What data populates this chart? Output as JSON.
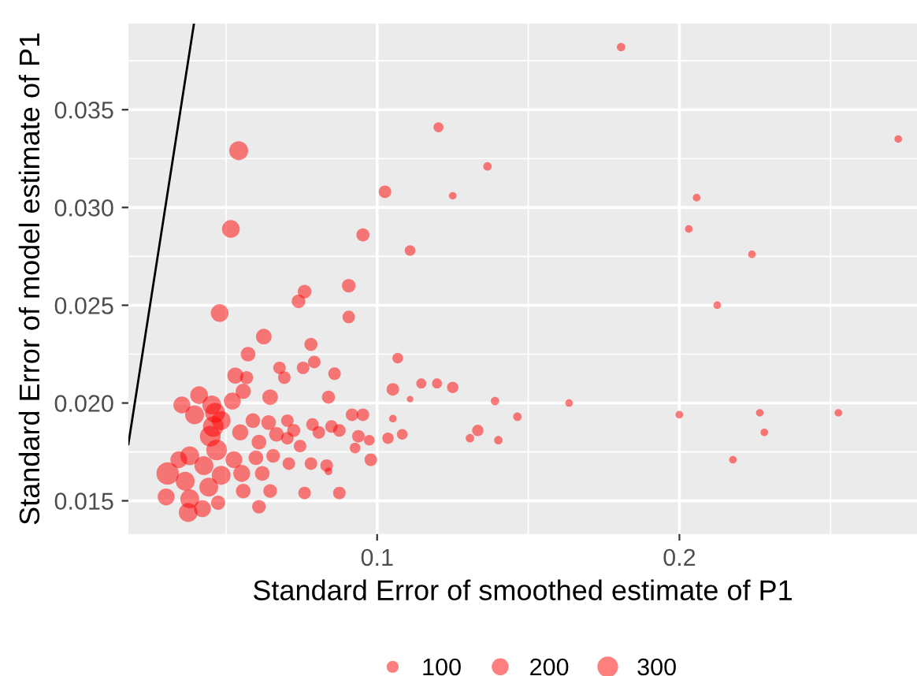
{
  "chart_data": {
    "type": "bubble",
    "xlabel": "Standard Error of smoothed estimate of P1",
    "ylabel": "Standard Error of model estimate of P1",
    "xlim": [
      0.0177,
      0.2786
    ],
    "ylim": [
      0.0133,
      0.0394
    ],
    "xticks": [
      0.1,
      0.2
    ],
    "yticks": [
      0.015,
      {
        "value": 0.02,
        "label": "0.020"
      },
      0.025,
      {
        "value": 0.03,
        "label": "0.030"
      },
      0.035
    ],
    "grid": true,
    "size_legend": [
      100,
      200,
      300
    ],
    "series": [
      {
        "color": "#ff0000",
        "x": [
          0.0307,
          0.0542,
          0.0516,
          0.0479,
          0.076,
          0.074,
          0.0906,
          0.0953,
          0.1026,
          0.1109,
          0.1203,
          0.125,
          0.1807,
          0.1365,
          0.2724,
          0.2057,
          0.2031,
          0.224,
          0.2125,
          0.125,
          0.139,
          0.1635,
          0.1464,
          0.2,
          0.2266,
          0.2526,
          0.1333,
          0.1307,
          0.1401,
          0.2281,
          0.2177,
          0.0906,
          0.0625,
          0.0781,
          0.0573,
          0.0792,
          0.1068,
          0.0677,
          0.0755,
          0.0859,
          0.0693,
          0.0531,
          0.0568,
          0.1146,
          0.1198,
          0.1052,
          0.1109,
          0.0839,
          0.0646,
          0.0354,
          0.0411,
          0.0453,
          0.0521,
          0.0557,
          0.0917,
          0.0953,
          0.1052,
          0.0396,
          0.0484,
          0.0589,
          0.0641,
          0.0703,
          0.0786,
          0.0849,
          0.0448,
          0.0547,
          0.0667,
          0.0724,
          0.0807,
          0.0875,
          0.0938,
          0.0974,
          0.1036,
          0.1083,
          0.0609,
          0.0703,
          0.0745,
          0.0469,
          0.038,
          0.0526,
          0.0599,
          0.0656,
          0.0708,
          0.0781,
          0.0833,
          0.0927,
          0.0979,
          0.0427,
          0.0484,
          0.0552,
          0.062,
          0.0839,
          0.0365,
          0.0443,
          0.0557,
          0.0646,
          0.076,
          0.0875,
          0.0302,
          0.038,
          0.0474,
          0.0609,
          0.0375,
          0.0422,
          0.0344,
          0.0464,
          0.0458
        ],
        "values": [
          0.0164,
          0.0329,
          0.0289,
          0.0246,
          0.0257,
          0.0252,
          0.026,
          0.0286,
          0.0308,
          0.0278,
          0.0341,
          0.0306,
          0.0382,
          0.0321,
          0.0335,
          0.0305,
          0.0289,
          0.0276,
          0.025,
          0.0208,
          0.0201,
          0.02,
          0.0193,
          0.0194,
          0.0195,
          0.0195,
          0.0186,
          0.0182,
          0.0181,
          0.0185,
          0.0171,
          0.0244,
          0.0234,
          0.023,
          0.0225,
          0.0221,
          0.0223,
          0.0218,
          0.0218,
          0.0215,
          0.0213,
          0.0214,
          0.0213,
          0.021,
          0.021,
          0.0207,
          0.0202,
          0.0203,
          0.0203,
          0.0199,
          0.0204,
          0.0199,
          0.0201,
          0.0206,
          0.0194,
          0.0194,
          0.0192,
          0.0194,
          0.0191,
          0.0191,
          0.019,
          0.0191,
          0.0189,
          0.0188,
          0.0183,
          0.0185,
          0.0184,
          0.0186,
          0.0185,
          0.0186,
          0.0183,
          0.0181,
          0.0182,
          0.0184,
          0.018,
          0.0182,
          0.0178,
          0.0176,
          0.0173,
          0.0171,
          0.0172,
          0.0173,
          0.0169,
          0.0169,
          0.0168,
          0.0177,
          0.0171,
          0.0168,
          0.0163,
          0.0164,
          0.0164,
          0.0165,
          0.016,
          0.0157,
          0.0155,
          0.0155,
          0.0154,
          0.0154,
          0.0152,
          0.0151,
          0.0149,
          0.0147,
          0.0144,
          0.0146,
          0.0171,
          0.0195,
          0.0188
        ],
        "sizes": [
          350,
          250,
          220,
          220,
          130,
          130,
          130,
          120,
          110,
          80,
          70,
          40,
          50,
          50,
          40,
          40,
          40,
          40,
          40,
          90,
          50,
          40,
          50,
          40,
          40,
          40,
          90,
          50,
          50,
          40,
          40,
          110,
          170,
          120,
          150,
          110,
          80,
          110,
          110,
          110,
          110,
          180,
          120,
          70,
          70,
          110,
          30,
          120,
          170,
          200,
          220,
          250,
          200,
          160,
          110,
          110,
          40,
          250,
          250,
          150,
          150,
          110,
          110,
          110,
          300,
          180,
          150,
          120,
          110,
          110,
          110,
          80,
          90,
          80,
          150,
          110,
          110,
          300,
          250,
          200,
          150,
          130,
          110,
          110,
          110,
          80,
          110,
          250,
          250,
          200,
          150,
          40,
          250,
          250,
          150,
          130,
          110,
          110,
          200,
          250,
          140,
          130,
          250,
          200,
          200,
          280,
          300
        ]
      },
      {
        "type": "line",
        "color": "#000000",
        "x": [
          0.0177,
          0.0394
        ],
        "values": [
          0.0179,
          0.0394
        ]
      }
    ]
  }
}
